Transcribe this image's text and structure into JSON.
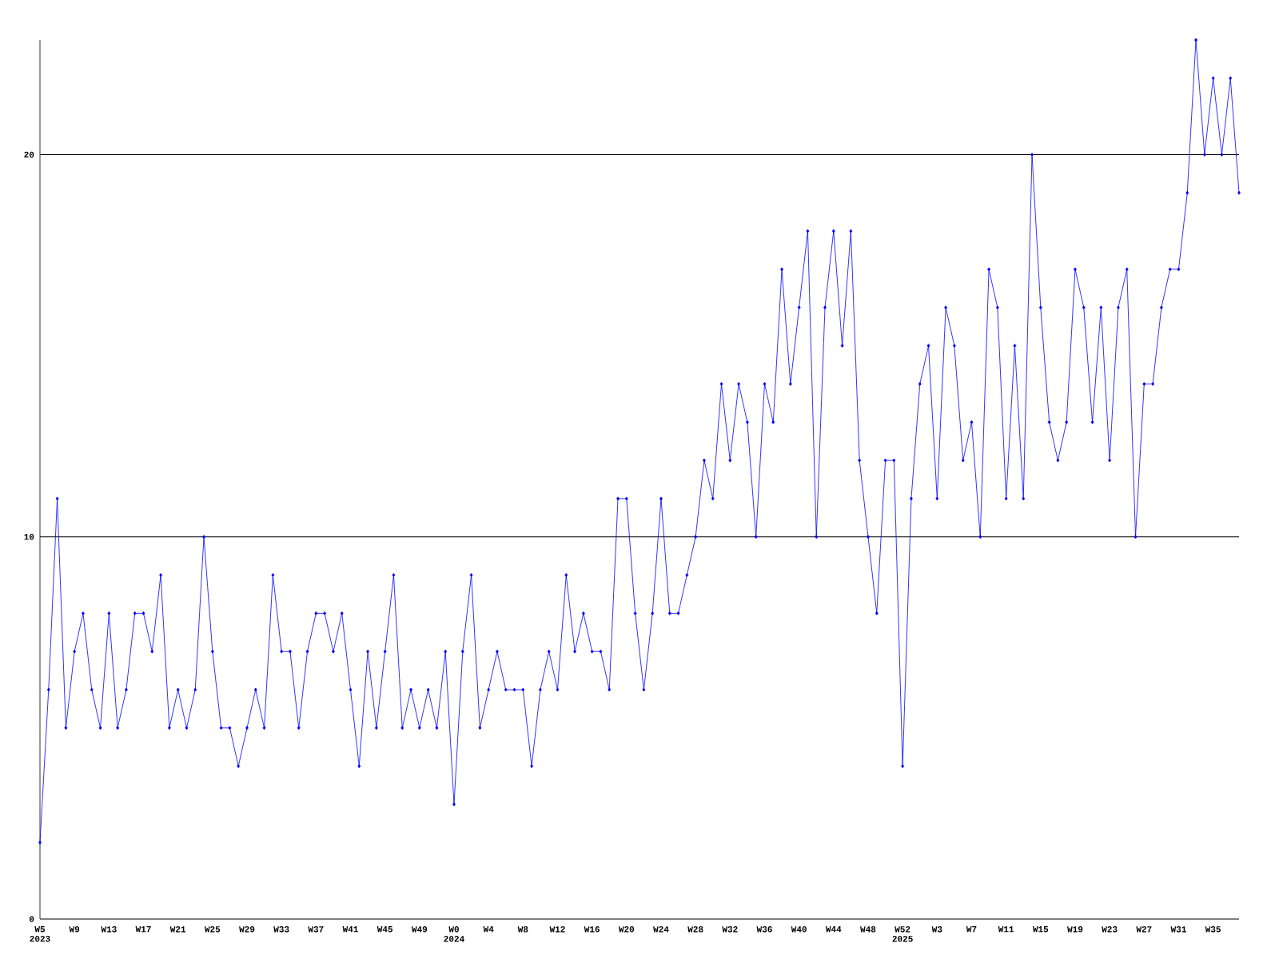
{
  "chart_data": {
    "type": "line",
    "categories": [
      "W5 2023",
      null,
      null,
      null,
      "W9",
      null,
      null,
      null,
      "W13",
      null,
      null,
      null,
      "W17",
      null,
      null,
      null,
      "W21",
      null,
      null,
      null,
      "W25",
      null,
      null,
      null,
      "W29",
      null,
      null,
      null,
      "W33",
      null,
      null,
      null,
      "W37",
      null,
      null,
      null,
      "W41",
      null,
      null,
      null,
      "W45",
      null,
      null,
      null,
      "W49",
      null,
      null,
      null,
      "W0 2024",
      null,
      null,
      null,
      "W4",
      null,
      null,
      null,
      "W8",
      null,
      null,
      null,
      "W12",
      null,
      null,
      null,
      "W16",
      null,
      null,
      null,
      "W20",
      null,
      null,
      null,
      "W24",
      null,
      null,
      null,
      "W28",
      null,
      null,
      null,
      "W32",
      null,
      null,
      null,
      "W36",
      null,
      null,
      null,
      "W40",
      null,
      null,
      null,
      "W44",
      null,
      null,
      null,
      "W48",
      null,
      null,
      null,
      "W52 2025",
      null,
      null,
      null,
      "W3",
      null,
      null,
      null,
      "W7",
      null,
      null,
      null,
      "W11",
      null,
      null,
      null,
      "W15",
      null,
      null,
      null,
      "W19",
      null,
      null,
      null,
      "W23",
      null,
      null,
      null,
      "W27",
      null,
      null,
      null,
      "W31",
      null,
      null,
      null,
      "W35",
      null,
      null,
      null
    ],
    "values": [
      2,
      6,
      11,
      5,
      7,
      8,
      6,
      5,
      8,
      5,
      6,
      8,
      8,
      7,
      9,
      5,
      6,
      5,
      6,
      10,
      7,
      5,
      5,
      4,
      5,
      6,
      5,
      9,
      7,
      7,
      5,
      7,
      8,
      8,
      7,
      8,
      6,
      4,
      7,
      5,
      7,
      9,
      5,
      6,
      5,
      6,
      5,
      7,
      3,
      7,
      9,
      5,
      6,
      7,
      6,
      6,
      6,
      4,
      6,
      7,
      6,
      9,
      7,
      8,
      7,
      7,
      6,
      11,
      11,
      8,
      6,
      8,
      11,
      8,
      8,
      9,
      10,
      12,
      11,
      14,
      12,
      14,
      13,
      10,
      14,
      13,
      17,
      14,
      16,
      18,
      10,
      16,
      18,
      15,
      18,
      12,
      10,
      8,
      12,
      12,
      4,
      11,
      14,
      15,
      11,
      16,
      15,
      12,
      13,
      10,
      17,
      16,
      11,
      15,
      11,
      20,
      16,
      13,
      12,
      13,
      17,
      16,
      13,
      16,
      12,
      16,
      17,
      10,
      14,
      14,
      16,
      17,
      17,
      19,
      23,
      20,
      22,
      20,
      22,
      19
    ],
    "color": "#0000ff",
    "ylim": [
      0,
      23
    ],
    "yticks": [
      0,
      10,
      20
    ],
    "grid": "y",
    "marker": "diamond",
    "line_style": "solid"
  }
}
